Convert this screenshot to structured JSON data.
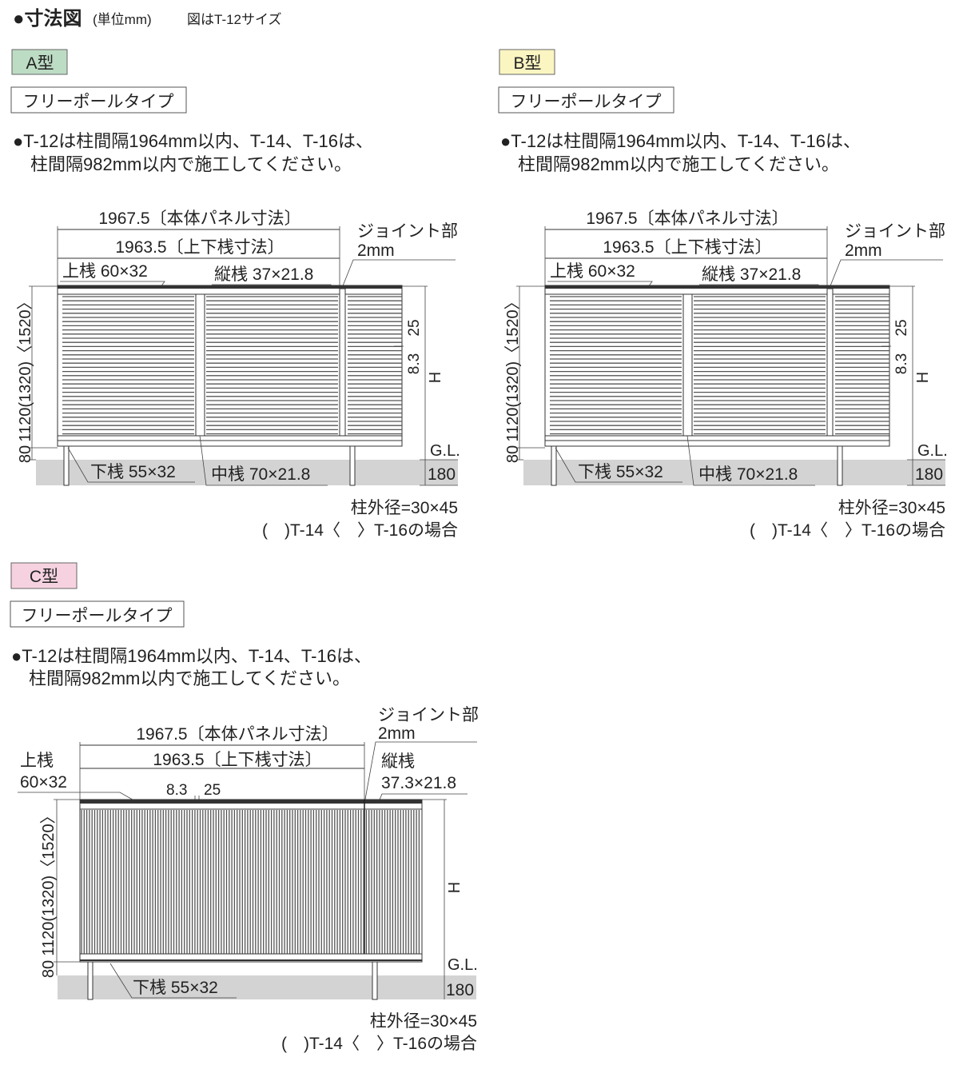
{
  "header": {
    "title": "●寸法図",
    "unit": "(単位mm)",
    "note": "図はT-12サイズ"
  },
  "types": [
    {
      "badge": "A型",
      "badge_color": "#bddcc4",
      "subtype": "フリーポールタイプ",
      "note_line1": "●T-12は柱間隔1964mm以内、T-14、T-16は、",
      "note_line2": "柱間隔982mm以内で施工してください。",
      "slat_orientation": "horizontal",
      "dims": {
        "panel": "1967.5〔本体パネル寸法〕",
        "rail": "1963.5〔上下桟寸法〕",
        "joint": "ジョイント部",
        "joint_gap": "2mm",
        "top_rail": "上桟 60×32",
        "vertical_rail": "縦桟 37×21.8",
        "bottom_rail": "下桟 55×32",
        "middle_rail": "中桟 70×21.8",
        "height": "1120(1320)〈1520〉",
        "clearance": "80",
        "h": "H",
        "gl": "G.L.",
        "embed": "180",
        "slat_pitch": "25",
        "slat_gap": "8.3"
      },
      "post": "柱外径=30×45",
      "variant_note": "(　)T-14〈　〉T-16の場合"
    },
    {
      "badge": "B型",
      "badge_color": "#fbf5c2",
      "subtype": "フリーポールタイプ",
      "note_line1": "●T-12は柱間隔1964mm以内、T-14、T-16は、",
      "note_line2": "柱間隔982mm以内で施工してください。",
      "slat_orientation": "horizontal",
      "dims": {
        "panel": "1967.5〔本体パネル寸法〕",
        "rail": "1963.5〔上下桟寸法〕",
        "joint": "ジョイント部",
        "joint_gap": "2mm",
        "top_rail": "上桟 60×32",
        "vertical_rail": "縦桟 37×21.8",
        "bottom_rail": "下桟 55×32",
        "middle_rail": "中桟 70×21.8",
        "height": "1120(1320)〈1520〉",
        "clearance": "80",
        "h": "H",
        "gl": "G.L.",
        "embed": "180",
        "slat_pitch": "25",
        "slat_gap": "8.3"
      },
      "post": "柱外径=30×45",
      "variant_note": "(　)T-14〈　〉T-16の場合"
    },
    {
      "badge": "C型",
      "badge_color": "#f6d2e0",
      "subtype": "フリーポールタイプ",
      "note_line1": "●T-12は柱間隔1964mm以内、T-14、T-16は、",
      "note_line2": "柱間隔982mm以内で施工してください。",
      "slat_orientation": "vertical",
      "dims": {
        "panel": "1967.5〔本体パネル寸法〕",
        "rail": "1963.5〔上下桟寸法〕",
        "joint": "ジョイント部",
        "joint_gap": "2mm",
        "top_rail_name": "上桟",
        "top_rail_size": "60×32",
        "vertical_rail_name": "縦桟",
        "vertical_rail_size": "37.3×21.8",
        "bottom_rail": "下桟 55×32",
        "height": "1120(1320)〈1520〉",
        "clearance": "80",
        "h": "H",
        "gl": "G.L.",
        "embed": "180",
        "slat_gap": "8.3",
        "slat_pitch": "25"
      },
      "post": "柱外径=30×45",
      "variant_note": "(　)T-14〈　〉T-16の場合"
    }
  ]
}
